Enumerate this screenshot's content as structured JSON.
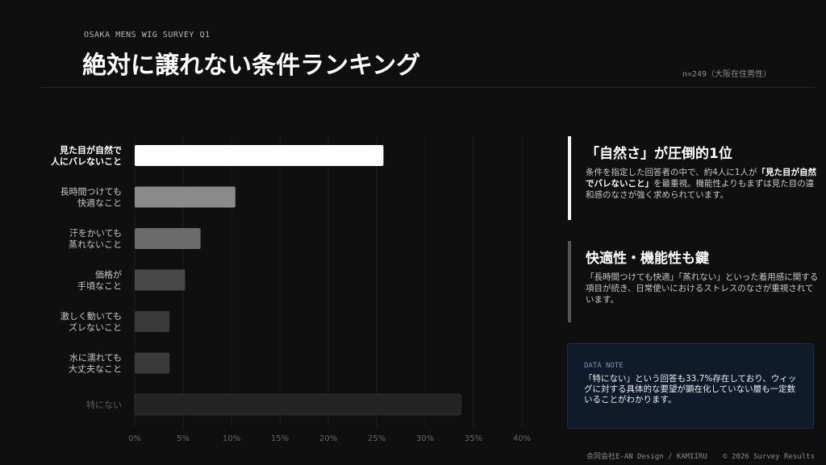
{
  "header": {
    "eyebrow": "OSAKA MENS WIG SURVEY Q1",
    "title": "絶対に譲れない条件ランキング",
    "sample": "n=249（大阪在住男性）"
  },
  "chart_data": {
    "type": "bar",
    "orientation": "horizontal",
    "categories": [
      [
        "見た目が自然で",
        "人にバレないこと"
      ],
      [
        "長時間つけても",
        "快適なこと"
      ],
      [
        "汗をかいても",
        "蒸れないこと"
      ],
      [
        "価格が",
        "手頃なこと"
      ],
      [
        "激しく動いても",
        "ズレないこと"
      ],
      [
        "水に濡れても",
        "大丈夫なこと"
      ],
      [
        "特にない"
      ]
    ],
    "values": [
      25.7,
      10.4,
      6.8,
      5.2,
      3.6,
      3.6,
      33.7
    ],
    "colors": [
      "#ffffff",
      "#8a8a8a",
      "#6b6b6b",
      "#484848",
      "#3a3a3a",
      "#3a3a3a",
      "#242424"
    ],
    "label_colors": [
      "#ffffff",
      "#c8c8c8",
      "#c8c8c8",
      "#c8c8c8",
      "#c8c8c8",
      "#c8c8c8",
      "#5e5e5e"
    ],
    "xlim": [
      0,
      40
    ],
    "xticks": [
      "0%",
      "5%",
      "10%",
      "15%",
      "20%",
      "25%",
      "30%",
      "35%",
      "40%"
    ],
    "grid": true,
    "legend": "none"
  },
  "insights": [
    {
      "title": "「自然さ」が圧倒的1位",
      "text_before": "条件を指定した回答者の中で、約4人に1人が",
      "emphasis": "「見た目が自然でバレないこと」",
      "text_after": "を最重視。機能性よりもまずは見た目の違和感のなさが強く求められています。"
    },
    {
      "title": "快適性・機能性も鍵",
      "text": "「長時間つけても快適」「蒸れない」といった着用感に関する項目が続き、日常使いにおけるストレスのなさが重視されています。"
    }
  ],
  "note": {
    "label": "DATA NOTE",
    "text": "「特にない」という回答も33.7%存在しており、ウィッグに対する具体的な要望が顕在化していない層も一定数いることがわかります。"
  },
  "footer": {
    "company": "合同会社E-AN Design / KAMIIRU",
    "copyright": "© 2026 Survey Results"
  }
}
